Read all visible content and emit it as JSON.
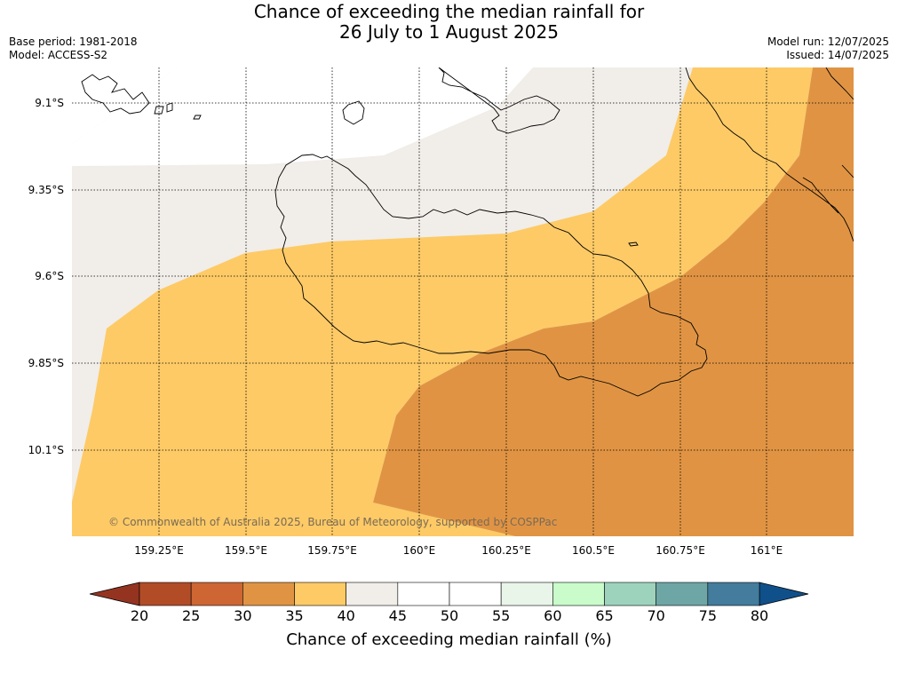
{
  "title": {
    "line1": "Chance of exceeding the median rainfall for",
    "line2": "26 July to 1 August 2025"
  },
  "meta": {
    "base_period": "Base period: 1981-2018",
    "model": "Model: ACCESS-S2",
    "model_run": "Model run: 12/07/2025",
    "issued": "Issued: 14/07/2025"
  },
  "map": {
    "lat_labels": [
      "9.1°S",
      "9.35°S",
      "9.6°S",
      "9.85°S",
      "10.1°S"
    ],
    "lon_labels": [
      "159.25°E",
      "159.5°E",
      "159.75°E",
      "160°E",
      "160.25°E",
      "160.5°E",
      "160.75°E",
      "161°E"
    ],
    "copyright": "© Commonwealth of Australia 2025, Bureau of Meteorology, supported by COSPPac",
    "category_colors": {
      "35-40": "#fdca66",
      "30-35": "#e09443",
      "40-45": "#f1ede8",
      "45-55": "#ffffff"
    }
  },
  "colorbar": {
    "label": "Chance of exceeding median rainfall (%)",
    "ticks": [
      "20",
      "25",
      "30",
      "35",
      "40",
      "45",
      "50",
      "55",
      "60",
      "65",
      "70",
      "75",
      "80"
    ],
    "colors": [
      "#b24c27",
      "#cd6633",
      "#e09443",
      "#fdca66",
      "#f1ede8",
      "#ffffff",
      "#ffffff",
      "#eaf5ea",
      "#c9fcca",
      "#9dd3bc",
      "#6ea6a6",
      "#437c9c"
    ],
    "low_extend_color": "#943420",
    "high_extend_color": "#10508a"
  }
}
